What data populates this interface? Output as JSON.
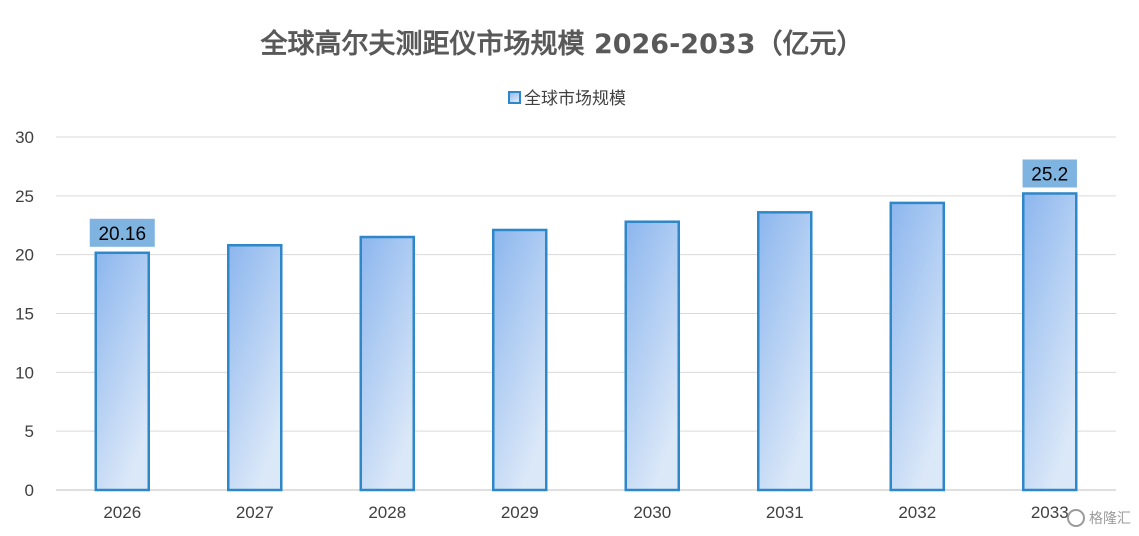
{
  "chart_data": {
    "type": "bar",
    "title": "全球高尔夫测距仪市场规模 2026-2033（亿元）",
    "categories": [
      "2026",
      "2027",
      "2028",
      "2029",
      "2030",
      "2031",
      "2032",
      "2033"
    ],
    "series": [
      {
        "name": "全球市场规模",
        "values": [
          20.16,
          20.8,
          21.5,
          22.1,
          22.8,
          23.6,
          24.4,
          25.2
        ]
      }
    ],
    "data_labels": {
      "2026": "20.16",
      "2033": "25.2"
    },
    "ylim": [
      0,
      30
    ],
    "yticks": [
      "0",
      "5",
      "10",
      "15",
      "20",
      "25",
      "30"
    ],
    "grid": true,
    "legend_position": "top-center",
    "colors": {
      "bar_fill_top": "#8cb6ee",
      "bar_fill_bottom": "#dbe8f8",
      "bar_stroke": "#2e87c8",
      "label_bg": "#7fb4e0",
      "grid": "#d9d9d9",
      "axis": "#bfbfbf"
    }
  },
  "watermark": {
    "text": "格隆汇",
    "icon": "logo-icon"
  }
}
